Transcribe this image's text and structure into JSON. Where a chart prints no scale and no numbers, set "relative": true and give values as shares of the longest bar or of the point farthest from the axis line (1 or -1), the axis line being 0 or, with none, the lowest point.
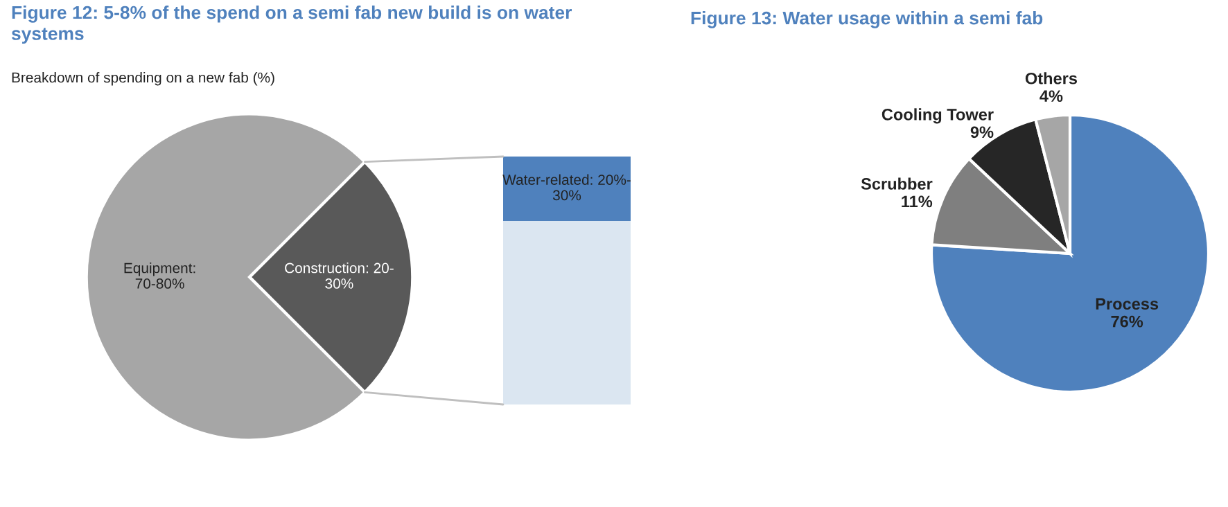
{
  "chart_data": [
    {
      "type": "pie",
      "title": "Figure 12: 5-8% of the spend on a semi fab new build is on water\nsystems",
      "subtitle": "Breakdown of spending on a new fab (%)",
      "categories": [
        "Construction: 20-\n30%",
        "Equipment:\n70-80%"
      ],
      "values": [
        25,
        75
      ],
      "colors": [
        "#595959",
        "#a6a6a6"
      ],
      "legend": false
    },
    {
      "type": "bar",
      "stacked": true,
      "relative": true,
      "categories": [
        null
      ],
      "legend": false,
      "series": [
        {
          "color": "#dbe6f1",
          "values": [
            0.74
          ]
        },
        {
          "name": "Water-related: 20%-\n30%",
          "color": "#4f81bd",
          "values": [
            0.26
          ]
        }
      ]
    },
    {
      "type": "pie",
      "title": "Figure 13: Water usage within a semi fab",
      "categories": [
        "Process",
        "Scrubber",
        "Cooling Tower",
        "Others"
      ],
      "values": [
        76,
        11,
        9,
        4
      ],
      "value_labels": [
        "76%",
        "11%",
        "9%",
        "4%"
      ],
      "colors": [
        "#4f81bd",
        "#7f7f7f",
        "#262626",
        "#a6a6a6"
      ],
      "legend": false
    }
  ]
}
